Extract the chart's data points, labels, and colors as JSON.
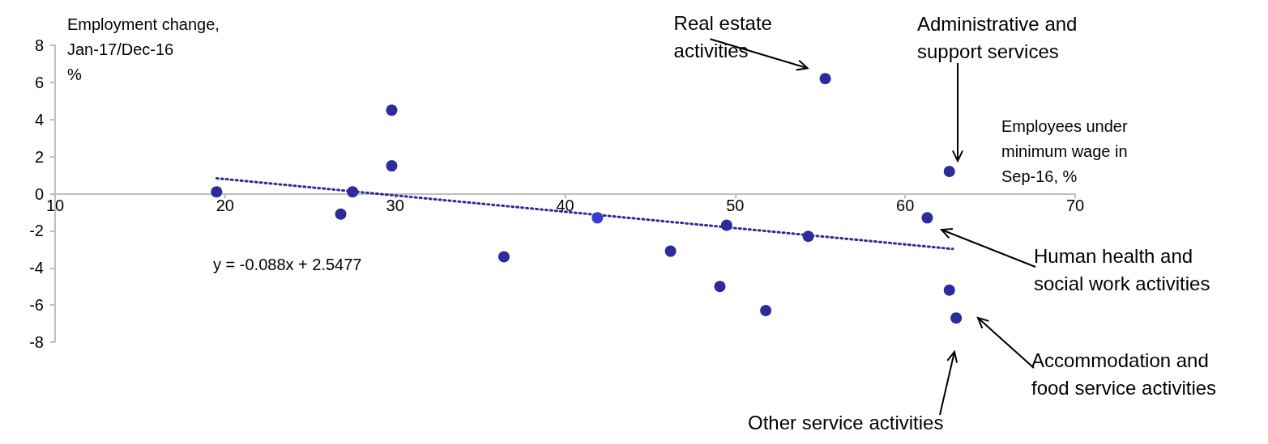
{
  "chart_data": {
    "type": "scatter",
    "xlabel": "Employees under minimum wage in Sep-16, %",
    "ylabel": "Employment change,\nJan-17/Dec-16\n%",
    "xlim": [
      10,
      70
    ],
    "xticks": [
      10,
      20,
      30,
      40,
      50,
      60,
      70
    ],
    "ylim": [
      -8,
      8
    ],
    "yticks": [
      -8,
      -6,
      -4,
      -2,
      0,
      2,
      4,
      6,
      8
    ],
    "grid": false,
    "marker": "circle",
    "series": [
      {
        "type": "scatter",
        "color": "#2b2b9b",
        "colors": [
          "#2b2b9b",
          "#2b2b9b",
          "#2b2b9b",
          "#2b2b9b",
          "#2b2b9b",
          "#2b2b9b",
          "#3a3ad6",
          "#2b2b9b",
          "#2b2b9b",
          "#2b2b9b",
          "#2b2b9b",
          "#2b2b9b",
          "#2b2b9b",
          "#2b2b9b",
          "#2b2b9b",
          "#2b2b9b",
          "#2b2b9b"
        ],
        "x": [
          19.5,
          26.8,
          27.5,
          29.8,
          29.8,
          36.4,
          41.9,
          46.2,
          49.1,
          49.5,
          51.8,
          54.3,
          55.3,
          61.3,
          62.6,
          62.6,
          63.0
        ],
        "values": [
          0.1,
          -1.1,
          0.1,
          1.5,
          4.5,
          -3.4,
          -1.3,
          -3.1,
          -5.0,
          -1.7,
          -6.3,
          -2.3,
          6.2,
          -1.3,
          1.2,
          -5.2,
          -6.7
        ]
      },
      {
        "type": "line",
        "color": "#2b2b9b",
        "line_style": "dotted",
        "marker": "none",
        "x": [
          19.5,
          62.8
        ],
        "values": [
          0.83,
          -2.98
        ]
      }
    ],
    "annotations": [
      {
        "text": "Real estate\nactivities",
        "x": 55.3,
        "y": 6.2
      },
      "Administrative and\nsupport services",
      "Human health and\nsocial work activities",
      "Accommodation and\nfood service activities",
      "Other service activities",
      "y = -0.088x + 2.5477"
    ]
  }
}
